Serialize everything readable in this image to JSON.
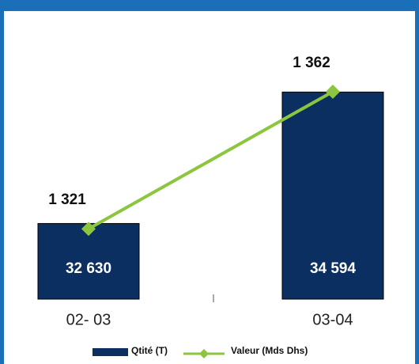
{
  "chart_data": {
    "type": "bar",
    "categories": [
      "02- 03",
      "03-04"
    ],
    "series": [
      {
        "name": "Qtité (T)",
        "type": "bar",
        "color": "#0b2f60",
        "values": [
          32630,
          34594
        ],
        "value_labels": [
          "32 630",
          "34 594"
        ]
      },
      {
        "name": "Valeur (Mds Dhs)",
        "type": "line",
        "axis": "y2",
        "color": "#8cc63f",
        "values": [
          1321,
          1362
        ],
        "value_labels": [
          "1 321",
          "1 362"
        ]
      }
    ],
    "ylim": [
      31500,
      35000
    ],
    "y2lim": [
      1300,
      1370
    ],
    "legend": "bottom"
  }
}
